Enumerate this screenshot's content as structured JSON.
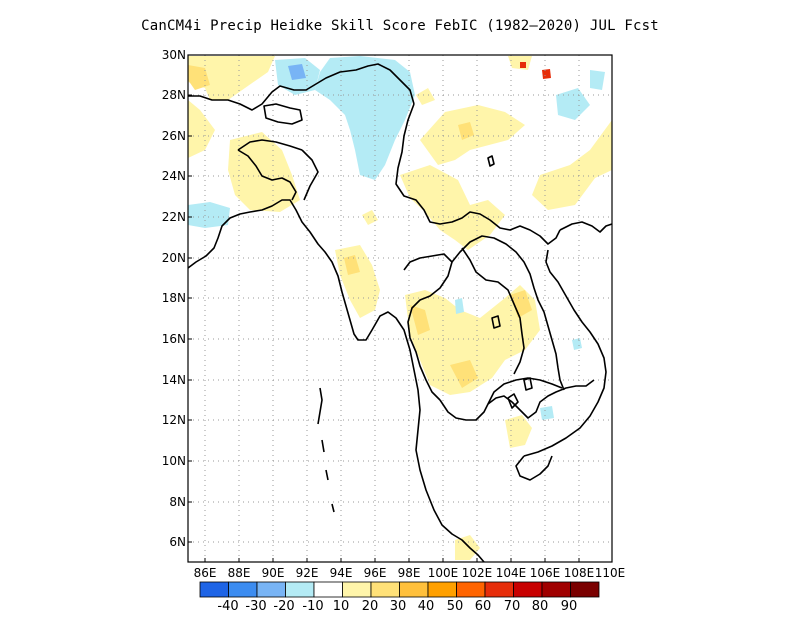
{
  "title": "CanCM4i Precip Heidke Skill Score FebIC (1982–2020) JUL Fcst",
  "lat_labels": [
    "30N",
    "28N",
    "26N",
    "24N",
    "22N",
    "20N",
    "18N",
    "16N",
    "14N",
    "12N",
    "10N",
    "8N",
    "6N"
  ],
  "lon_labels": [
    "86E",
    "88E",
    "90E",
    "92E",
    "94E",
    "96E",
    "98E",
    "100E",
    "102E",
    "104E",
    "106E",
    "108E",
    "110E"
  ],
  "colorbar": {
    "labels": [
      "-40",
      "-30",
      "-20",
      "-10",
      "10",
      "20",
      "30",
      "40",
      "50",
      "60",
      "70",
      "80",
      "90"
    ],
    "colors": [
      "#1e64e6",
      "#3c8cf0",
      "#78b4f5",
      "#b4ebf5",
      "#ffffff",
      "#fff5aa",
      "#ffe178",
      "#ffc03c",
      "#ffa000",
      "#ff6400",
      "#e62d0a",
      "#c80000",
      "#a00000",
      "#7a0000"
    ]
  },
  "map": {
    "lon_range": [
      85,
      110
    ],
    "lat_range": [
      5,
      30
    ],
    "grid": "dotted",
    "field_colors": {
      "light_yellow": "#fff5aa",
      "yellow": "#ffe178",
      "light_blue": "#b4ebf5",
      "blue": "#78b4f5"
    }
  }
}
